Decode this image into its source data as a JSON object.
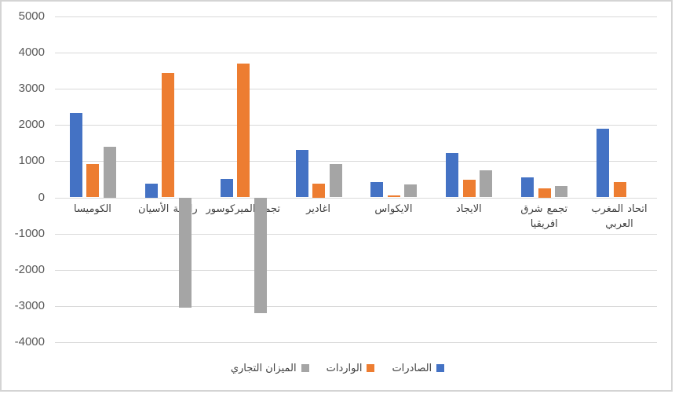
{
  "chart_data": {
    "type": "bar",
    "title": "",
    "xlabel": "",
    "ylabel": "",
    "categories": [
      "الكوميسا",
      "رابطة الأسيان",
      "تجمع الميركوسور",
      "اغادير",
      "الايكواس",
      "الايجاد",
      "تجمع شرق افريقيا",
      "اتحاد المغرب العربي"
    ],
    "series": [
      {
        "key": "exports",
        "name": "الصادرات",
        "color": "#4472C4",
        "values": [
          2330,
          380,
          500,
          1310,
          420,
          1220,
          560,
          1890
        ]
      },
      {
        "key": "imports",
        "name": "الواردات",
        "color": "#ED7D31",
        "values": [
          930,
          3430,
          3700,
          380,
          60,
          480,
          250,
          430
        ]
      },
      {
        "key": "trade-balance",
        "name": "الميزان التجاري",
        "color": "#A5A5A5",
        "values": [
          1400,
          -3050,
          -3200,
          930,
          360,
          740,
          310,
          null
        ]
      }
    ],
    "ylim": [
      -4000,
      5000
    ],
    "y_tick_step": 1000,
    "y_ticks": [
      {
        "value": 5000,
        "label": "5000"
      },
      {
        "value": 4000,
        "label": "4000"
      },
      {
        "value": 3000,
        "label": "3000"
      },
      {
        "value": 2000,
        "label": "2000"
      },
      {
        "value": 1000,
        "label": "1000"
      },
      {
        "value": 0,
        "label": "0"
      },
      {
        "value": -1000,
        "label": "-1000"
      },
      {
        "value": -2000,
        "label": "-2000"
      },
      {
        "value": -3000,
        "label": "-3000"
      },
      {
        "value": -4000,
        "label": "-4000"
      }
    ],
    "grid": true,
    "legend_position": "bottom",
    "colors": {
      "gridline": "#D9D9D9",
      "tick_label": "#595959",
      "category_label": "#404040",
      "legend_label": "#404040",
      "frame_border": "#D4D4D4",
      "background": "#FFFFFF"
    }
  }
}
